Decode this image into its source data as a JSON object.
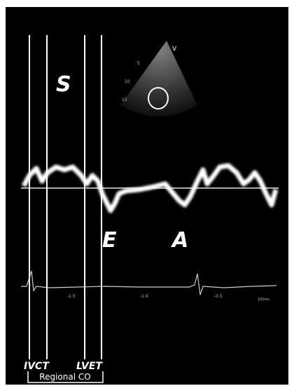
{
  "waves": {
    "systolic": "S",
    "early": "E",
    "atrial": "A"
  },
  "echo": {
    "apex": "V",
    "depths": [
      "5",
      "10",
      "15"
    ]
  },
  "ecg_scale": [
    "-1.5",
    "-1.0",
    "-0.5",
    "100ms"
  ],
  "intervals": [
    "IVCT",
    "LVET"
  ],
  "bracket": "Regional CO"
}
